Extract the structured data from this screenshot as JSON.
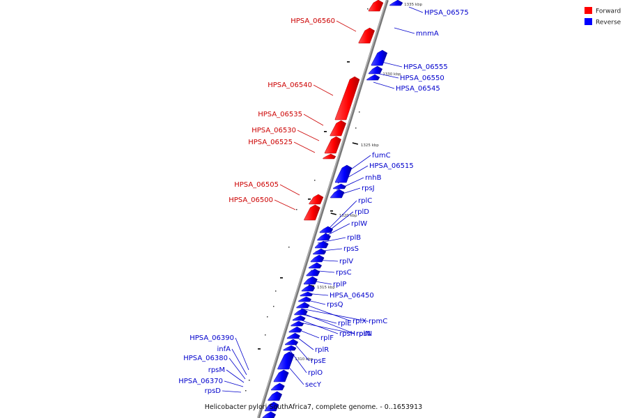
{
  "caption": "Helicobacter pylori SouthAfrica7, complete genome. - 0..1653913",
  "legend": [
    {
      "label": "Forward",
      "color": "#ff0000"
    },
    {
      "label": "Reverse",
      "color": "#0000ff"
    }
  ],
  "colors": {
    "forward": "#ff0000",
    "forward_dark": "#b00000",
    "reverse": "#0000ff",
    "reverse_dark": "#0000a0",
    "backbone": "#888888",
    "forward_label": "#cc0000",
    "reverse_label": "#0000cc"
  },
  "scale_ticks": [
    "1335 kbp",
    "1330 kbp",
    "1325 kbp",
    "1320 kbp",
    "1315 kbp",
    "1310 kbp"
  ],
  "forward_genes": [
    "HPSA_06560",
    "HPSA_06540",
    "HPSA_06535",
    "HPSA_06530",
    "HPSA_06525",
    "HPSA_06505",
    "HPSA_06500"
  ],
  "reverse_genes": [
    "HPSA_06575",
    "mnmA",
    "HPSA_06555",
    "HPSA_06550",
    "HPSA_06545",
    "fumC",
    "HPSA_06515",
    "rnhB",
    "rpsJ",
    "rplC",
    "rplD",
    "rplW",
    "rplB",
    "rpsS",
    "rplV",
    "rpsC",
    "rplP",
    "HPSA_06450",
    "rpsQ",
    "rplX",
    "rpmC",
    "rplN",
    "rplE",
    "rpsH",
    "rpsN",
    "rplF",
    "rplR",
    "rpsE",
    "rplO",
    "secY",
    "HPSA_06390",
    "infA",
    "HPSA_06380",
    "rpsM",
    "HPSA_06370",
    "rpsD"
  ]
}
